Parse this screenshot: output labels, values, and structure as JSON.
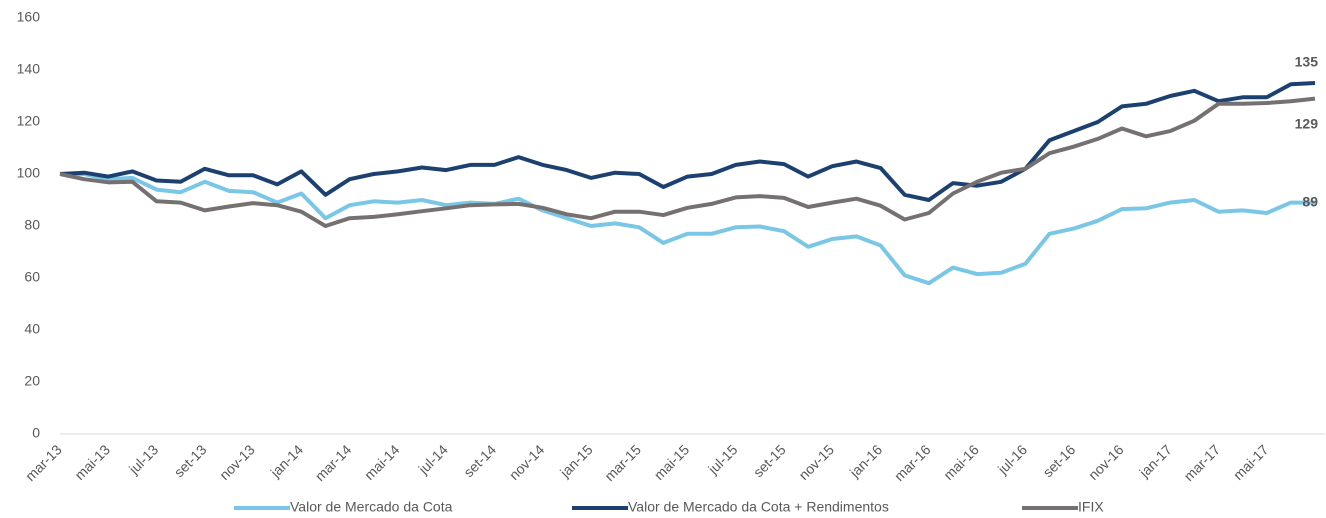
{
  "chart_data": {
    "type": "line",
    "categories": [
      "mar-13",
      null,
      "mai-13",
      null,
      "jul-13",
      null,
      "set-13",
      null,
      "nov-13",
      null,
      "jan-14",
      null,
      "mar-14",
      null,
      "mai-14",
      null,
      "jul-14",
      null,
      "set-14",
      null,
      "nov-14",
      null,
      "jan-15",
      null,
      "mar-15",
      null,
      "mai-15",
      null,
      "jul-15",
      null,
      "set-15",
      null,
      "nov-15",
      null,
      "jan-16",
      null,
      "mar-16",
      null,
      "mai-16",
      null,
      "jul-16",
      null,
      "set-16",
      null,
      "nov-16",
      null,
      "jan-17",
      null,
      "mar-17",
      null,
      "mai-17",
      null,
      null
    ],
    "series": [
      {
        "name": "Valor de Mercado da Cota",
        "color": "#7ac6e6",
        "values": [
          100,
          100,
          98,
          98.5,
          94,
          93,
          97,
          93.5,
          93,
          89,
          92.5,
          83,
          88,
          89.5,
          89,
          90,
          88,
          89,
          88.5,
          90.5,
          86,
          83,
          80,
          81,
          79.5,
          73.5,
          77,
          77,
          79.5,
          79.8,
          78,
          72,
          75,
          76,
          72.5,
          61,
          58,
          64,
          61.5,
          62,
          65.5,
          77,
          79,
          82,
          86.5,
          86.8,
          89,
          90,
          85.5,
          86,
          85,
          89,
          89
        ]
      },
      {
        "name": "Valor de Mercado da Cota + Rendimentos",
        "color": "#1c4170",
        "values": [
          100,
          100.5,
          99,
          101,
          97.5,
          97,
          102,
          99.5,
          99.5,
          96,
          101,
          92,
          98,
          100,
          101,
          102.5,
          101.5,
          103.5,
          103.5,
          106.5,
          103.5,
          101.5,
          98.5,
          100.5,
          100,
          95,
          99,
          100,
          103.5,
          104.8,
          103.8,
          99,
          103,
          104.8,
          102.3,
          92,
          90,
          96.5,
          95.5,
          97,
          102,
          113,
          116.5,
          120,
          126,
          127,
          130,
          132,
          128,
          129.5,
          129.5,
          134.5,
          135
        ]
      },
      {
        "name": "IFIX",
        "color": "#767171",
        "values": [
          100,
          98,
          96.8,
          97,
          89.5,
          89,
          86,
          87.5,
          88.8,
          88,
          85.5,
          80,
          83,
          83.5,
          84.5,
          85.7,
          86.8,
          88,
          88.3,
          88.5,
          87,
          84.5,
          83,
          85.5,
          85.5,
          84.2,
          87,
          88.5,
          91,
          91.5,
          90.8,
          87.3,
          89,
          90.5,
          87.8,
          82.5,
          85,
          92.5,
          97,
          100.5,
          102,
          108,
          110.5,
          113.5,
          117.5,
          114.5,
          116.5,
          120.5,
          127,
          127,
          127.3,
          128,
          129
        ]
      }
    ],
    "ylim": [
      0,
      160
    ],
    "yticks": [
      0,
      20,
      40,
      60,
      80,
      100,
      120,
      140,
      160
    ],
    "grid": false,
    "end_labels": true,
    "legend": "bottom"
  }
}
